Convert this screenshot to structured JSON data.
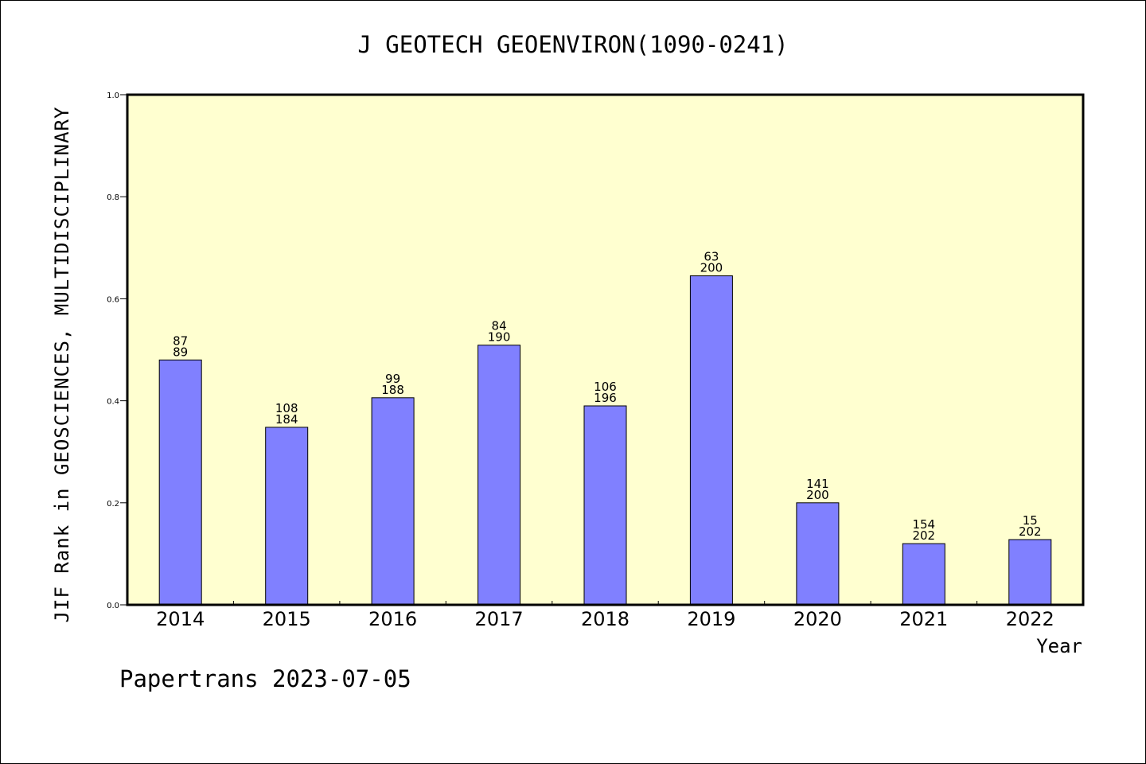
{
  "chart_data": {
    "type": "bar",
    "title": "J GEOTECH GEOENVIRON(1090-0241)",
    "xlabel": "Year",
    "ylabel": "JIF Rank in GEOSCIENCES, MULTIDISCIPLINARY",
    "ylim": [
      0,
      1.0
    ],
    "yticks": [
      "0.0",
      "0.2",
      "0.4",
      "0.6",
      "0.8",
      "1.0"
    ],
    "categories": [
      "2014",
      "2015",
      "2016",
      "2017",
      "2018",
      "2019",
      "2020",
      "2021",
      "2022"
    ],
    "values": [
      0.48,
      0.348,
      0.406,
      0.509,
      0.39,
      0.645,
      0.2,
      0.12,
      0.128
    ],
    "rank": [
      "87",
      "108",
      "99",
      "84",
      "106",
      "63",
      "141",
      "154",
      "15"
    ],
    "total": [
      "89",
      "184",
      "188",
      "190",
      "196",
      "200",
      "200",
      "202",
      "202"
    ],
    "grid": false,
    "legend": "none",
    "colors": {
      "bar_fill": "#8080ff",
      "plot_background": "#ffffd0",
      "axis": "#000000"
    }
  },
  "footer": "Papertrans 2023-07-05"
}
